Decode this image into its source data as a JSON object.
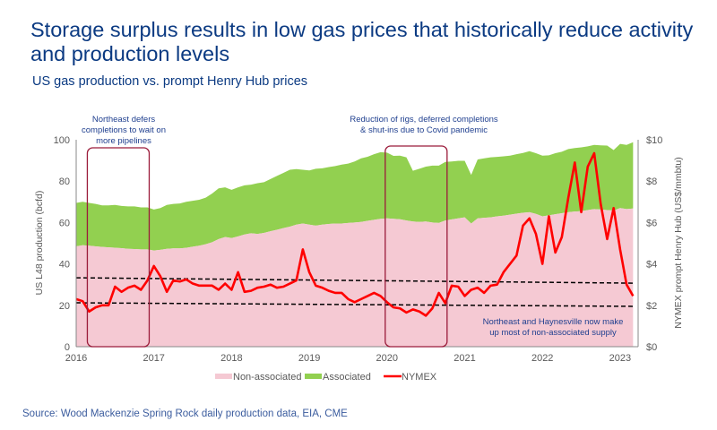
{
  "title": "Storage surplus results in low gas prices that historically reduce activity and production levels",
  "subtitle": "US gas production vs. prompt Henry Hub prices",
  "source": "Source: Wood Mackenzie Spring Rock daily production data, EIA, CME",
  "chart_data": {
    "type": "area",
    "x_start": "2016-01",
    "x_frequency": "monthly",
    "x_ticks": [
      "2016",
      "2017",
      "2018",
      "2019",
      "2020",
      "2021",
      "2022",
      "2023"
    ],
    "ylabel": "US L48 production (bcfd)",
    "ylim": [
      0,
      100
    ],
    "y_ticks": [
      "0",
      "20",
      "40",
      "60",
      "80",
      "100"
    ],
    "y2label": "NYMEX prompt Henry Hub (US$/mmbtu)",
    "y2lim": [
      0,
      10
    ],
    "y2_ticks": [
      "$0",
      "$2",
      "$4",
      "$6",
      "$8",
      "$10"
    ],
    "grid": false,
    "legend_position": "bottom",
    "colors": {
      "non_associated": "#f5c9d3",
      "associated": "#92d050",
      "nymex": "#ff0000",
      "annotation_box": "#9b1b3a",
      "annotation_text": "#1f3f8f"
    },
    "series": [
      {
        "name": "Non-associated",
        "type": "stacked-area",
        "axis": "left",
        "values": [
          48.5,
          49,
          48.8,
          48.5,
          48.2,
          48,
          47.8,
          47.6,
          47.3,
          47.2,
          47,
          47,
          46.5,
          46.8,
          47.3,
          47.5,
          47.5,
          47.8,
          48.3,
          48.8,
          49.5,
          50.5,
          52,
          53,
          52.5,
          53.3,
          54.2,
          54.8,
          54.5,
          55,
          55.8,
          56.5,
          57.3,
          58,
          59,
          59.5,
          59,
          58.5,
          59,
          59.3,
          59.5,
          59.5,
          59.8,
          60,
          60.3,
          60.8,
          61.3,
          61.8,
          62,
          61.8,
          61.6,
          61,
          60.5,
          60.3,
          60.5,
          60,
          59.8,
          61,
          61.5,
          62,
          62.5,
          59.5,
          62,
          62.3,
          62.5,
          63,
          63.3,
          63.8,
          64.3,
          64.7,
          65,
          64.2,
          63,
          63.5,
          64,
          64.5,
          65,
          65.3,
          65.5,
          66,
          66.5,
          66.3,
          66,
          65.8,
          67,
          66.5,
          66.8
        ]
      },
      {
        "name": "Associated",
        "type": "stacked-area",
        "axis": "left",
        "values": [
          21,
          21,
          20.7,
          20.5,
          20.1,
          20.3,
          20.7,
          20.4,
          20.5,
          20.6,
          20.3,
          20.3,
          19.8,
          20.2,
          21.2,
          21.5,
          21.7,
          22.2,
          22.2,
          22.2,
          22.5,
          23.5,
          24.5,
          24,
          23.3,
          23.7,
          23.8,
          23.5,
          24.5,
          24.5,
          25.2,
          26,
          26.7,
          27.5,
          26.8,
          26,
          26.2,
          27.5,
          27.2,
          27.5,
          27.8,
          28.5,
          28.7,
          29.5,
          30.7,
          31,
          31.7,
          32.2,
          31.8,
          30.4,
          30.7,
          30.5,
          24.5,
          25.7,
          26.5,
          27.5,
          27.7,
          28.3,
          28,
          27.8,
          27.3,
          23.5,
          28.5,
          28.7,
          29,
          28.7,
          28.7,
          28.5,
          28.7,
          28.9,
          29.5,
          29.3,
          29.3,
          29,
          29.5,
          29.7,
          30.5,
          30.7,
          30.8,
          30.8,
          31,
          31,
          31.2,
          29.2,
          31,
          31,
          32
        ]
      },
      {
        "name": "NYMEX",
        "type": "line",
        "axis": "right",
        "values": [
          2.3,
          2.2,
          1.7,
          1.9,
          2.0,
          2.0,
          2.9,
          2.65,
          2.85,
          2.95,
          2.75,
          3.2,
          3.9,
          3.4,
          2.65,
          3.2,
          3.15,
          3.25,
          3.05,
          2.95,
          2.95,
          2.95,
          2.75,
          3.05,
          2.75,
          3.6,
          2.65,
          2.7,
          2.85,
          2.9,
          3.0,
          2.85,
          2.9,
          3.05,
          3.2,
          4.7,
          3.6,
          2.95,
          2.85,
          2.7,
          2.6,
          2.6,
          2.3,
          2.15,
          2.3,
          2.45,
          2.6,
          2.45,
          2.15,
          1.9,
          1.85,
          1.65,
          1.8,
          1.7,
          1.5,
          1.85,
          2.6,
          2.1,
          2.95,
          2.9,
          2.45,
          2.75,
          2.85,
          2.6,
          2.95,
          3.0,
          3.6,
          4.0,
          4.4,
          5.85,
          6.2,
          5.45,
          4.0,
          6.3,
          4.55,
          5.3,
          7.2,
          8.9,
          6.5,
          8.7,
          9.35,
          6.9,
          5.2,
          6.7,
          4.7,
          3.0,
          2.45
        ]
      }
    ],
    "reference_lines": [
      {
        "style": "dashed",
        "axis": "right",
        "from": [
          "2016-01",
          3.33
        ],
        "to": [
          "2023-03",
          3.07
        ]
      },
      {
        "style": "dashed",
        "axis": "right",
        "from": [
          "2016-01",
          2.12
        ],
        "to": [
          "2023-03",
          1.95
        ]
      }
    ],
    "annotations": [
      {
        "text": [
          "Northeast defers",
          "completions to wait  on",
          "more pipelines"
        ],
        "box_from": "2016-03",
        "box_to": "2016-12"
      },
      {
        "text": [
          "Reduction of rigs, deferred completions",
          "& shut-ins due to Covid pandemic"
        ],
        "box_from": "2020-01",
        "box_to": "2020-10"
      },
      {
        "text": [
          "Northeast and Haynesville now make",
          "up most of non-associated supply"
        ]
      }
    ]
  }
}
